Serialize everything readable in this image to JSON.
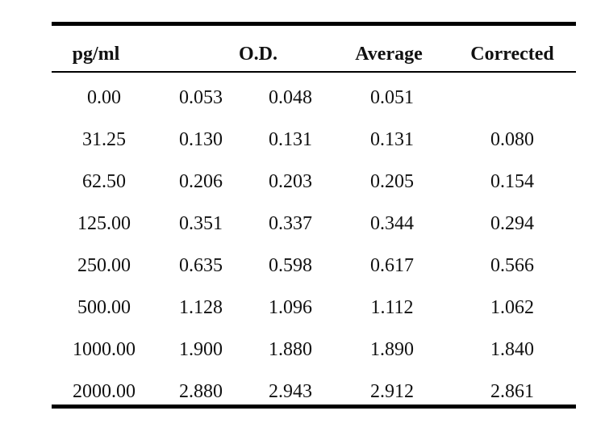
{
  "table": {
    "headers": {
      "concentration": "pg/ml",
      "od": "O.D.",
      "average": "Average",
      "corrected": "Corrected"
    },
    "rows": [
      {
        "conc": "0.00",
        "od1": "0.053",
        "od2": "0.048",
        "avg": "0.051",
        "corr": ""
      },
      {
        "conc": "31.25",
        "od1": "0.130",
        "od2": "0.131",
        "avg": "0.131",
        "corr": "0.080"
      },
      {
        "conc": "62.50",
        "od1": "0.206",
        "od2": "0.203",
        "avg": "0.205",
        "corr": "0.154"
      },
      {
        "conc": "125.00",
        "od1": "0.351",
        "od2": "0.337",
        "avg": "0.344",
        "corr": "0.294"
      },
      {
        "conc": "250.00",
        "od1": "0.635",
        "od2": "0.598",
        "avg": "0.617",
        "corr": "0.566"
      },
      {
        "conc": "500.00",
        "od1": "1.128",
        "od2": "1.096",
        "avg": "1.112",
        "corr": "1.062"
      },
      {
        "conc": "1000.00",
        "od1": "1.900",
        "od2": "1.880",
        "avg": "1.890",
        "corr": "1.840"
      },
      {
        "conc": "2000.00",
        "od1": "2.880",
        "od2": "2.943",
        "avg": "2.912",
        "corr": "2.861"
      }
    ]
  }
}
